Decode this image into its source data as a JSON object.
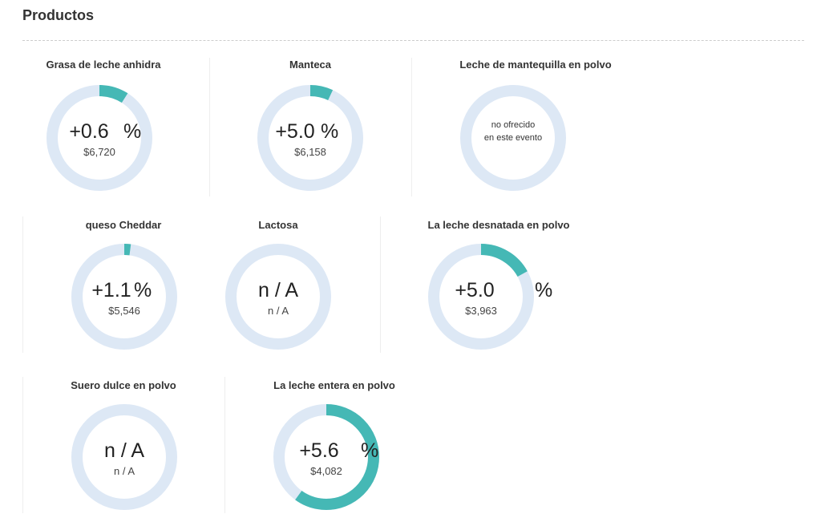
{
  "header": {
    "title": "Productos"
  },
  "colors": {
    "track": "#dde8f5",
    "fill": "#45b8b5"
  },
  "products": [
    {
      "name": "Grasa de leche anhidra",
      "value": "+0.6",
      "unit": "%",
      "price": "$6,720",
      "fill": 0.09
    },
    {
      "name": "Manteca",
      "value": "+5.0",
      "unit": "%",
      "price": "$6,158",
      "fill": 0.07
    },
    {
      "name": "Leche de mantequilla en polvo",
      "note_line1": "no ofrecido",
      "note_line2": "en este evento",
      "fill": 0
    },
    {
      "name": "queso Cheddar",
      "value": "+1.1",
      "unit": "%",
      "price": "$5,546",
      "fill": 0.02
    },
    {
      "name": "Lactosa",
      "value": "n / A",
      "price": "n / A",
      "fill": 0
    },
    {
      "name": "La leche desnatada en polvo",
      "value": "+5.0",
      "unit": "%",
      "price": "$3,963",
      "fill": 0.17
    },
    {
      "name": "Suero dulce en polvo",
      "value": "n / A",
      "price": "n / A",
      "fill": 0
    },
    {
      "name": "La leche entera en polvo",
      "value": "+5.6",
      "unit": "%",
      "price": "$4,082",
      "fill": 0.6
    }
  ]
}
